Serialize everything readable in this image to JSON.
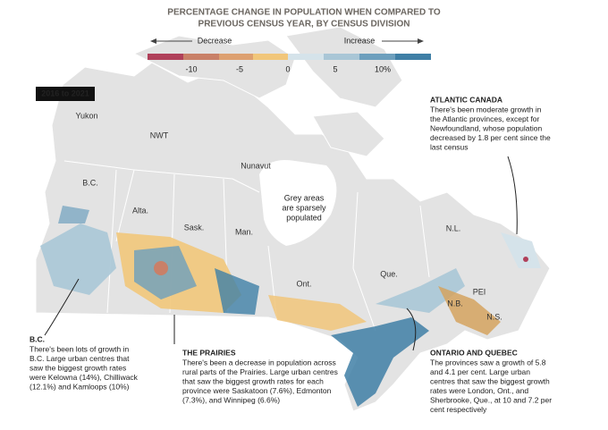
{
  "title": [
    "PERCENTAGE CHANGE IN POPULATION WHEN COMPARED TO",
    "PREVIOUS CENSUS YEAR, BY CENSUS DIVISION"
  ],
  "legend": {
    "decrease": "Decrease",
    "increase": "Increase",
    "ticks": [
      "-10",
      "-5",
      "0",
      "5",
      "10%"
    ]
  },
  "period": "2016 to 2021",
  "regions": [
    "Yukon",
    "NWT",
    "Nunavut",
    "B.C.",
    "Alta.",
    "Sask.",
    "Man.",
    "Ont.",
    "Que.",
    "N.L.",
    "PEI",
    "N.B.",
    "N.S."
  ],
  "grey_note": [
    "Grey areas",
    "are sparsely",
    "populated"
  ],
  "annotations": [
    {
      "heading": "ATLANTIC CANADA",
      "lines": [
        "There's been moderate growth in",
        "the Atlantic provinces, except for",
        "Newfoundland, whose population",
        "decreased by 1.8 per cent since the",
        "last census"
      ]
    },
    {
      "heading": "B.C.",
      "lines": [
        "There's been lots of growth in",
        "B.C. Large urban centres that",
        "saw the biggest growth rates",
        "were Kelowna (14%), Chilliwack",
        "(12.1%) and Kamloops (10%)"
      ]
    },
    {
      "heading": "THE PRAIRIES",
      "lines": [
        "There's been a decrease in population across",
        "rural parts of the Prairies. Large urban centres",
        "that saw the biggest growth rates for each",
        "province were Saskatoon (7.6%), Edmonton",
        "(7.3%), and Winnipeg (6.6%)"
      ]
    },
    {
      "heading": "ONTARIO AND QUEBEC",
      "lines": [
        "The provinces saw a growth of 5.8",
        "and 4.1 per cent. Large urban",
        "centres that saw the biggest growth",
        "rates were London, Ont., and",
        "Sherbrooke, Que., at 10 and 7.2 per",
        "cent respectively"
      ]
    }
  ]
}
